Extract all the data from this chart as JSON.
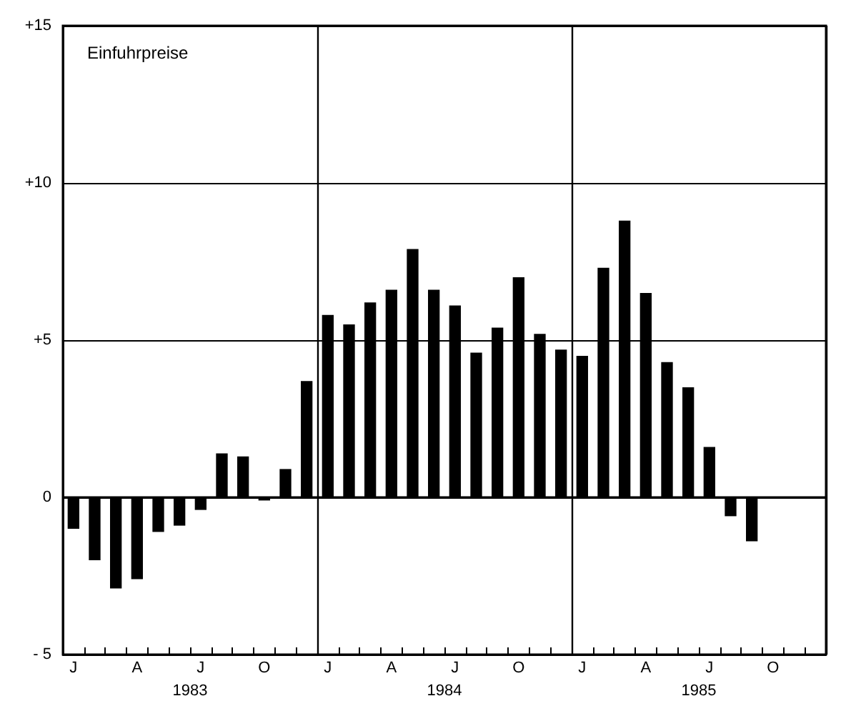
{
  "chart_data": {
    "type": "bar",
    "title": "Einfuhrpreise",
    "categories": [
      "J",
      null,
      null,
      "A",
      null,
      null,
      "J",
      null,
      null,
      "O",
      null,
      null,
      "J",
      null,
      null,
      "A",
      null,
      null,
      "J",
      null,
      null,
      "O",
      null,
      null,
      "J",
      null,
      null,
      "A",
      null,
      null,
      "J",
      null,
      null,
      "O",
      null,
      null
    ],
    "values": [
      -1.0,
      -2.0,
      -2.9,
      -2.6,
      -1.1,
      -0.9,
      -0.4,
      1.4,
      1.3,
      -0.1,
      0.9,
      3.7,
      5.8,
      5.5,
      6.2,
      6.6,
      7.9,
      6.6,
      6.1,
      4.6,
      5.4,
      7.0,
      5.2,
      4.7,
      4.5,
      7.3,
      8.8,
      6.5,
      4.3,
      3.5,
      1.6,
      -0.6,
      -1.4,
      null,
      null,
      null
    ],
    "color": "#000000",
    "ylim": [
      -5,
      15
    ],
    "yticks": [
      {
        "value": -5,
        "label": "- 5"
      },
      {
        "value": 0,
        "label": "0"
      },
      {
        "value": 5,
        "label": "+5"
      },
      {
        "value": 10,
        "label": "+10"
      },
      {
        "value": 15,
        "label": "+15"
      }
    ],
    "grid": true,
    "ref_lines": [
      {
        "axis": "y",
        "value": 0,
        "color": "#000000"
      }
    ],
    "annotations": [
      "1983",
      "1984",
      "1985"
    ]
  }
}
